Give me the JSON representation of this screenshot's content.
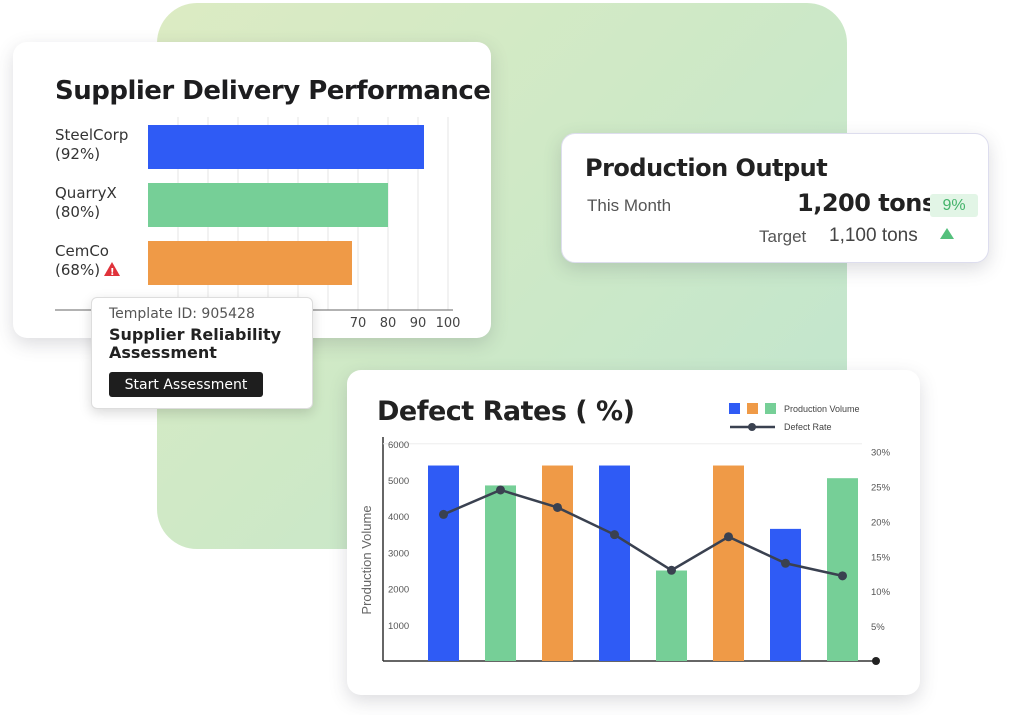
{
  "supplier": {
    "title": "Supplier Delivery Performance",
    "items": [
      {
        "name": "SteelCorp",
        "pct_label": "(92%)",
        "warning": false
      },
      {
        "name": "QuarryX",
        "pct_label": "(80%)",
        "warning": false
      },
      {
        "name": "CemCo",
        "pct_label": "(68%)",
        "warning": true
      }
    ]
  },
  "tooltip": {
    "template_id": "Template ID: 905428",
    "name": "Supplier Reliability Assessment",
    "button_label": "Start Assessment"
  },
  "production": {
    "title": "Production Output",
    "period": "This Month",
    "value": "1,200 tons",
    "change": "9%",
    "target_label": "Target",
    "target_value": "1,100 tons"
  },
  "chart_data": [
    {
      "type": "bar",
      "title": "Supplier Delivery Performance",
      "orientation": "horizontal",
      "categories": [
        "SteelCorp",
        "QuarryX",
        "CemCo"
      ],
      "values": [
        92,
        80,
        68
      ],
      "colors": [
        "#2f5bf5",
        "#76cf97",
        "#ef9a47"
      ],
      "xticks": [
        "70",
        "80",
        "90",
        "100"
      ],
      "xlim": [
        0,
        110
      ]
    },
    {
      "type": "bar",
      "title": "Defect Rates ( %)",
      "ylabel": "Production Volume",
      "ylim": [
        0,
        6000
      ],
      "yticks": [
        "1000",
        "2000",
        "3000",
        "4000",
        "5000",
        "6000"
      ],
      "y2lim": [
        0,
        30
      ],
      "y2ticks": [
        "5%",
        "10%",
        "15%",
        "20%",
        "25%",
        "30%"
      ],
      "legend": {
        "bar_label": "Production Volume",
        "line_label": "Defect Rate",
        "position": "top-right"
      },
      "series": [
        {
          "name": "Production Volume",
          "kind": "bar",
          "values": [
            5400,
            4850,
            5400,
            5400,
            2500,
            5400,
            3650,
            5050
          ],
          "colors": [
            "#2f5bf5",
            "#76cf97",
            "#ef9a47",
            "#2f5bf5",
            "#76cf97",
            "#ef9a47",
            "#2f5bf5",
            "#76cf97"
          ]
        },
        {
          "name": "Defect Rate",
          "kind": "line",
          "axis": "y2",
          "values": [
            21,
            24.5,
            22,
            18.1,
            13,
            17.8,
            14,
            12.2
          ],
          "color": "#3a4150"
        }
      ]
    }
  ]
}
